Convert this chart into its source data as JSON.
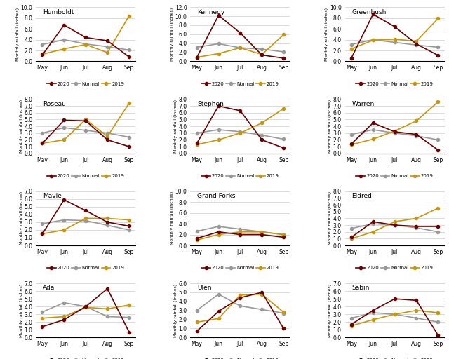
{
  "months": [
    "May",
    "Jun",
    "Jul",
    "Aug",
    "Sep"
  ],
  "locations": [
    {
      "name": "Humboldt",
      "ylim": [
        0,
        10.0
      ],
      "yticks": [
        0.0,
        2.0,
        4.0,
        6.0,
        8.0,
        10.0
      ],
      "y2020": [
        1.2,
        6.7,
        4.4,
        3.8,
        0.8
      ],
      "ynormal": [
        3.1,
        4.0,
        3.2,
        2.7,
        2.1
      ],
      "y2019": [
        1.3,
        2.3,
        3.1,
        1.6,
        8.4
      ]
    },
    {
      "name": "Kennedy",
      "ylim": [
        0,
        12.0
      ],
      "yticks": [
        0.0,
        2.0,
        4.0,
        6.0,
        8.0,
        10.0,
        12.0
      ],
      "y2020": [
        0.9,
        10.2,
        6.3,
        1.4,
        0.7
      ],
      "ynormal": [
        3.1,
        3.9,
        3.0,
        2.7,
        2.1
      ],
      "y2019": [
        0.9,
        1.7,
        3.0,
        1.5,
        5.9
      ]
    },
    {
      "name": "Greenbush",
      "ylim": [
        0,
        10.0
      ],
      "yticks": [
        0.0,
        2.0,
        4.0,
        6.0,
        8.0,
        10.0
      ],
      "y2020": [
        0.6,
        8.7,
        6.4,
        3.2,
        1.1
      ],
      "ynormal": [
        3.1,
        4.0,
        3.5,
        3.0,
        2.6
      ],
      "y2019": [
        2.3,
        3.9,
        4.1,
        3.7,
        7.9
      ]
    },
    {
      "name": "Roseau",
      "ylim": [
        0,
        8.0
      ],
      "yticks": [
        0.0,
        1.0,
        2.0,
        3.0,
        4.0,
        5.0,
        6.0,
        7.0,
        8.0
      ],
      "y2020": [
        1.5,
        4.9,
        4.8,
        2.0,
        1.0
      ],
      "ynormal": [
        3.0,
        3.8,
        3.4,
        3.0,
        2.4
      ],
      "y2019": [
        1.5,
        2.0,
        5.0,
        2.5,
        7.4
      ]
    },
    {
      "name": "Stephen",
      "ylim": [
        0,
        8.0
      ],
      "yticks": [
        0.0,
        1.0,
        2.0,
        3.0,
        4.0,
        5.0,
        6.0,
        7.0,
        8.0
      ],
      "y2020": [
        1.5,
        7.0,
        6.3,
        2.0,
        0.8
      ],
      "ynormal": [
        3.0,
        3.5,
        3.2,
        2.7,
        2.1
      ],
      "y2019": [
        1.3,
        2.0,
        3.0,
        4.5,
        6.6
      ]
    },
    {
      "name": "Warren",
      "ylim": [
        0,
        8.0
      ],
      "yticks": [
        0.0,
        1.0,
        2.0,
        3.0,
        4.0,
        5.0,
        6.0,
        7.0,
        8.0
      ],
      "y2020": [
        1.4,
        4.5,
        3.2,
        2.8,
        0.5
      ],
      "ynormal": [
        2.8,
        3.5,
        3.0,
        2.6,
        2.0
      ],
      "y2019": [
        1.3,
        2.1,
        3.3,
        4.8,
        7.6
      ]
    },
    {
      "name": "Mavie",
      "ylim": [
        0,
        7.0
      ],
      "yticks": [
        0.0,
        1.0,
        2.0,
        3.0,
        4.0,
        5.0,
        6.0,
        7.0
      ],
      "y2020": [
        1.5,
        5.9,
        4.5,
        3.0,
        2.5
      ],
      "ynormal": [
        2.8,
        3.3,
        3.2,
        2.6,
        2.0
      ],
      "y2019": [
        1.5,
        2.0,
        3.5,
        3.5,
        3.3
      ]
    },
    {
      "name": "Grand Forks",
      "ylim": [
        0,
        10.0
      ],
      "yticks": [
        0.0,
        2.0,
        4.0,
        6.0,
        8.0,
        10.0
      ],
      "y2020": [
        1.3,
        2.5,
        2.0,
        2.0,
        1.5
      ],
      "ynormal": [
        2.6,
        3.5,
        3.0,
        2.5,
        2.0
      ],
      "y2019": [
        1.0,
        2.0,
        2.5,
        2.5,
        2.0
      ]
    },
    {
      "name": "Eldred",
      "ylim": [
        0,
        8.0
      ],
      "yticks": [
        0.0,
        1.0,
        2.0,
        3.0,
        4.0,
        5.0,
        6.0,
        7.0,
        8.0
      ],
      "y2020": [
        1.2,
        3.5,
        3.0,
        2.8,
        2.8
      ],
      "ynormal": [
        2.5,
        3.2,
        3.0,
        2.6,
        2.0
      ],
      "y2019": [
        1.0,
        2.0,
        3.5,
        4.0,
        5.5
      ]
    },
    {
      "name": "Ada",
      "ylim": [
        0,
        7.0
      ],
      "yticks": [
        0.0,
        1.0,
        2.0,
        3.0,
        4.0,
        5.0,
        6.0,
        7.0
      ],
      "y2020": [
        1.4,
        2.3,
        4.0,
        6.3,
        0.7
      ],
      "ynormal": [
        3.3,
        4.5,
        4.0,
        2.7,
        2.6
      ],
      "y2019": [
        2.5,
        2.7,
        3.9,
        3.7,
        4.2
      ]
    },
    {
      "name": "Ulen",
      "ylim": [
        0,
        6.0
      ],
      "yticks": [
        0.0,
        1.0,
        2.0,
        3.0,
        4.0,
        5.0,
        6.0
      ],
      "y2020": [
        0.7,
        2.9,
        4.4,
        5.0,
        1.0
      ],
      "ynormal": [
        3.0,
        4.8,
        3.5,
        3.1,
        2.7
      ],
      "y2019": [
        1.7,
        2.1,
        4.7,
        4.8,
        2.8
      ]
    },
    {
      "name": "Sabin",
      "ylim": [
        0,
        7.0
      ],
      "yticks": [
        0.0,
        1.0,
        2.0,
        3.0,
        4.0,
        5.0,
        6.0,
        7.0
      ],
      "y2020": [
        1.7,
        3.5,
        5.0,
        4.8,
        0.3
      ],
      "ynormal": [
        2.5,
        3.2,
        3.0,
        2.5,
        2.0
      ],
      "y2019": [
        1.5,
        2.3,
        3.0,
        3.5,
        3.2
      ]
    }
  ],
  "color_2020": "#6b0000",
  "color_normal": "#999999",
  "color_2019": "#c8960c",
  "linewidth": 1.2,
  "markersize": 3,
  "ylabel": "Monthly rainfall (inches)",
  "background_color": "#ffffff",
  "grid_color": "#cccccc"
}
